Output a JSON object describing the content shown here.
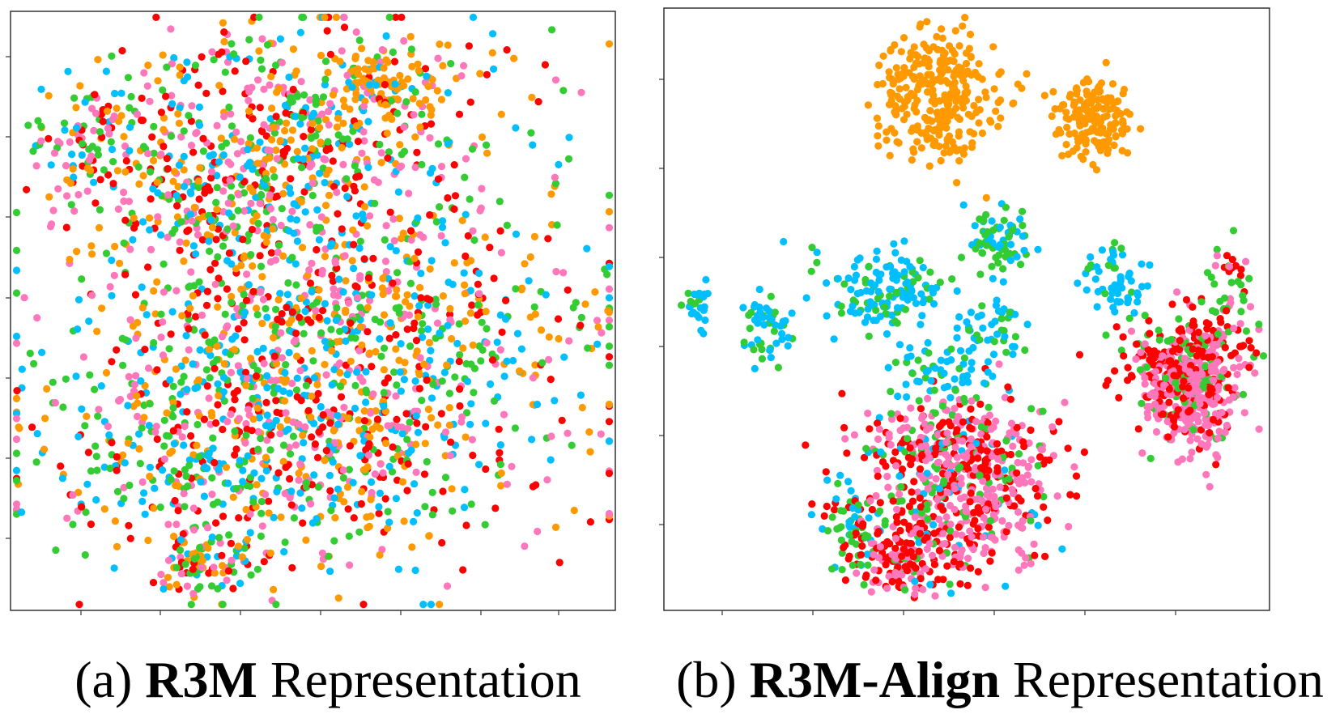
{
  "colors": {
    "orange": "#ff9900",
    "green": "#33cc33",
    "cyan": "#00bfff",
    "red": "#ff0000",
    "pink": "#ff77bb"
  },
  "panels": [
    {
      "caption_prefix": "(a) ",
      "caption_bold": "R3M",
      "caption_suffix": " Representation"
    },
    {
      "caption_prefix": "(b) ",
      "caption_bold": "R3M-Align",
      "caption_suffix": " Representation"
    }
  ],
  "chart_data": [
    {
      "type": "scatter",
      "title": "",
      "xlabel": "",
      "ylabel": "",
      "grid": false,
      "legend": "none",
      "xlim": [
        0,
        100
      ],
      "ylim": [
        0,
        100
      ],
      "description_mix": "all five colors uniformly intermixed",
      "clusters": [
        {
          "cx": 15,
          "cy": 78,
          "sx": 7,
          "sy": 6,
          "n": 120,
          "mix": {
            "orange": 1,
            "green": 1,
            "cyan": 1,
            "red": 1,
            "pink": 1.3
          }
        },
        {
          "cx": 48,
          "cy": 84,
          "sx": 17,
          "sy": 8,
          "n": 420,
          "mix": {
            "orange": 1,
            "green": 1,
            "cyan": 1,
            "red": 1,
            "pink": 1.2
          }
        },
        {
          "cx": 62,
          "cy": 88,
          "sx": 5,
          "sy": 3,
          "n": 90,
          "mix": {
            "orange": 5,
            "green": 0.5,
            "cyan": 0.5,
            "red": 0.3,
            "pink": 0.3
          }
        },
        {
          "cx": 36,
          "cy": 70,
          "sx": 12,
          "sy": 6,
          "n": 260,
          "mix": {
            "orange": 1.2,
            "green": 1,
            "cyan": 1,
            "red": 1,
            "pink": 1
          }
        },
        {
          "cx": 55,
          "cy": 45,
          "sx": 22,
          "sy": 15,
          "n": 1200,
          "mix": {
            "orange": 1,
            "green": 1,
            "cyan": 1,
            "red": 1,
            "pink": 1.1
          }
        },
        {
          "cx": 40,
          "cy": 25,
          "sx": 18,
          "sy": 9,
          "n": 500,
          "mix": {
            "orange": 1.1,
            "green": 1,
            "cyan": 1,
            "red": 1,
            "pink": 1
          }
        },
        {
          "cx": 33,
          "cy": 8,
          "sx": 4,
          "sy": 3,
          "n": 90,
          "mix": {
            "orange": 1.3,
            "green": 1,
            "cyan": 1,
            "red": 0.8,
            "pink": 1
          }
        }
      ]
    },
    {
      "type": "scatter",
      "title": "",
      "xlabel": "",
      "ylabel": "",
      "grid": false,
      "legend": "none",
      "xlim": [
        0,
        100
      ],
      "ylim": [
        0,
        100
      ],
      "clusters": [
        {
          "cx": 45,
          "cy": 85,
          "sx": 5,
          "sy": 5,
          "n": 300,
          "mix": {
            "orange": 1
          }
        },
        {
          "cx": 71,
          "cy": 82,
          "sx": 3.2,
          "sy": 3.2,
          "n": 170,
          "mix": {
            "orange": 1
          }
        },
        {
          "cx": 6,
          "cy": 51,
          "sx": 1.3,
          "sy": 2,
          "n": 25,
          "mix": {
            "cyan": 3,
            "green": 1
          }
        },
        {
          "cx": 17,
          "cy": 47,
          "sx": 2.2,
          "sy": 3,
          "n": 55,
          "mix": {
            "cyan": 3,
            "green": 1
          }
        },
        {
          "cx": 37,
          "cy": 53,
          "sx": 5,
          "sy": 3.5,
          "n": 140,
          "mix": {
            "cyan": 2.5,
            "green": 1.3
          }
        },
        {
          "cx": 55,
          "cy": 62,
          "sx": 3,
          "sy": 2.5,
          "n": 70,
          "mix": {
            "cyan": 2,
            "green": 2
          }
        },
        {
          "cx": 55,
          "cy": 48,
          "sx": 2.5,
          "sy": 3,
          "n": 45,
          "mix": {
            "cyan": 3,
            "green": 1
          }
        },
        {
          "cx": 75,
          "cy": 55,
          "sx": 3,
          "sy": 3,
          "n": 60,
          "mix": {
            "cyan": 3,
            "green": 1
          }
        },
        {
          "cx": 44,
          "cy": 40,
          "sx": 4,
          "sy": 3,
          "n": 60,
          "mix": {
            "cyan": 3,
            "green": 1
          }
        },
        {
          "cx": 48,
          "cy": 27,
          "sx": 8,
          "sy": 5,
          "n": 380,
          "mix": {
            "pink": 2.3,
            "red": 2,
            "green": 0.6,
            "cyan": 0.5
          }
        },
        {
          "cx": 53,
          "cy": 17,
          "sx": 6,
          "sy": 5,
          "n": 200,
          "mix": {
            "pink": 2.5,
            "red": 1,
            "green": 0.4,
            "cyan": 0.3
          }
        },
        {
          "cx": 41,
          "cy": 10,
          "sx": 5,
          "sy": 4,
          "n": 220,
          "mix": {
            "red": 2.5,
            "pink": 1.5,
            "green": 0.5,
            "cyan": 0.3
          }
        },
        {
          "cx": 31,
          "cy": 14,
          "sx": 2.5,
          "sy": 4,
          "n": 60,
          "mix": {
            "green": 2,
            "cyan": 1.5,
            "red": 0.5
          }
        },
        {
          "cx": 87,
          "cy": 36,
          "sx": 4,
          "sy": 5,
          "n": 360,
          "mix": {
            "pink": 3,
            "red": 1,
            "green": 0.3
          }
        },
        {
          "cx": 85,
          "cy": 42,
          "sx": 5,
          "sy": 4,
          "n": 200,
          "mix": {
            "red": 3,
            "green": 0.8,
            "pink": 0.6
          }
        },
        {
          "cx": 94,
          "cy": 52,
          "sx": 2.5,
          "sy": 5,
          "n": 50,
          "mix": {
            "red": 1.5,
            "pink": 1,
            "green": 1
          }
        }
      ]
    }
  ]
}
